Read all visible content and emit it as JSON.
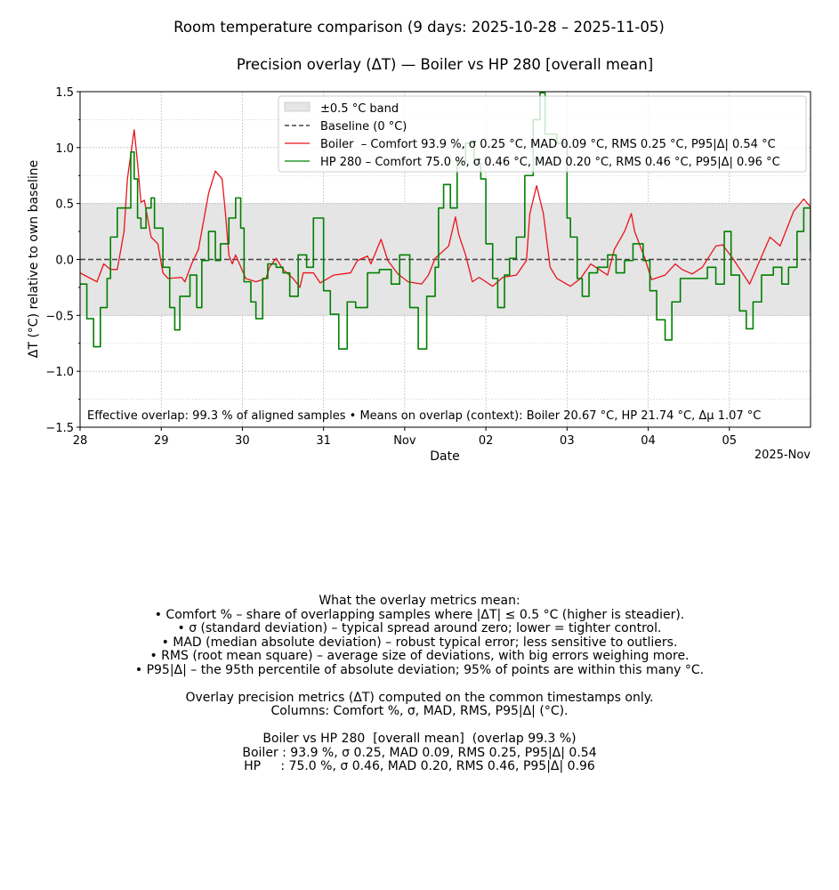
{
  "chart_data": {
    "type": "line",
    "suptitle": "Room temperature comparison (9 days: 2025-10-28 – 2025-11-05)",
    "title": "Precision overlay (ΔT) — Boiler vs HP 280  [overall mean]",
    "xlabel": "Date",
    "ylabel": "ΔT (°C) relative to own baseline",
    "x_offset_label": "2025-Nov",
    "xlim": [
      "2025-10-28 00:00",
      "2025-11-06 00:00"
    ],
    "ylim": [
      -1.5,
      1.5
    ],
    "grid": true,
    "legend_placement": "top-center",
    "yticks": [
      -1.5,
      -1.0,
      -0.5,
      0.0,
      0.5,
      1.0,
      1.5
    ],
    "ytick_labels": [
      "−1.5",
      "−1.0",
      "−0.5",
      "0.0",
      "0.5",
      "1.0",
      "1.5"
    ],
    "xticks": [
      "2025-10-28",
      "2025-10-29",
      "2025-10-30",
      "2025-10-31",
      "2025-11-01",
      "2025-11-02",
      "2025-11-03",
      "2025-11-04",
      "2025-11-05"
    ],
    "xtick_labels": [
      "28",
      "29",
      "30",
      "31",
      "Nov",
      "02",
      "03",
      "04",
      "05"
    ],
    "band": {
      "low": -0.5,
      "high": 0.5,
      "label": "±0.5 °C band",
      "color": "#e5e5e5"
    },
    "baseline": {
      "value": 0,
      "label": "Baseline (0 °C)",
      "color": "#444444"
    },
    "annotation": "Effective overlap: 99.3 % of aligned samples • Means on overlap (context): Boiler 20.67 °C, HP 21.74 °C, Δμ 1.07 °C",
    "series": [
      {
        "name": "Boiler  – Comfort 93.9 %, σ 0.25 °C, MAD 0.09 °C, RMS 0.25 °C, P95|Δ| 0.54 °C",
        "color": "#e8141c",
        "style": "line",
        "x": [
          "2025-10-28 00:00",
          "2025-10-28 05:00",
          "2025-10-28 07:00",
          "2025-10-28 09:00",
          "2025-10-28 11:00",
          "2025-10-28 13:00",
          "2025-10-28 14:00",
          "2025-10-28 16:00",
          "2025-10-28 17:00",
          "2025-10-28 18:00",
          "2025-10-28 19:00",
          "2025-10-28 21:00",
          "2025-10-28 23:00",
          "2025-10-29 00:30",
          "2025-10-29 02:00",
          "2025-10-29 06:00",
          "2025-10-29 07:00",
          "2025-10-29 09:00",
          "2025-10-29 11:00",
          "2025-10-29 14:00",
          "2025-10-29 16:00",
          "2025-10-29 18:00",
          "2025-10-29 19:00",
          "2025-10-29 20:00",
          "2025-10-29 21:00",
          "2025-10-29 22:00",
          "2025-10-30 01:00",
          "2025-10-30 04:00",
          "2025-10-30 07:00",
          "2025-10-30 08:00",
          "2025-10-30 10:00",
          "2025-10-30 12:00",
          "2025-10-30 15:00",
          "2025-10-30 17:00",
          "2025-10-30 18:00",
          "2025-10-30 21:00",
          "2025-10-30 23:00",
          "2025-10-31 03:00",
          "2025-10-31 08:00",
          "2025-10-31 10:00",
          "2025-10-31 13:00",
          "2025-10-31 14:00",
          "2025-10-31 17:00",
          "2025-10-31 19:00",
          "2025-10-31 22:00",
          "2025-11-01 01:00",
          "2025-11-01 05:00",
          "2025-11-01 07:00",
          "2025-11-01 09:00",
          "2025-11-01 13:00",
          "2025-11-01 15:00",
          "2025-11-01 16:00",
          "2025-11-01 18:00",
          "2025-11-01 20:00",
          "2025-11-01 22:00",
          "2025-11-02 02:00",
          "2025-11-02 05:00",
          "2025-11-02 09:00",
          "2025-11-02 12:00",
          "2025-11-02 13:00",
          "2025-11-02 15:00",
          "2025-11-02 17:00",
          "2025-11-02 19:00",
          "2025-11-02 21:00",
          "2025-11-03 01:00",
          "2025-11-03 04:00",
          "2025-11-03 07:00",
          "2025-11-03 12:00",
          "2025-11-03 14:00",
          "2025-11-03 17:00",
          "2025-11-03 19:00",
          "2025-11-03 20:00",
          "2025-11-03 23:00",
          "2025-11-04 01:00",
          "2025-11-04 05:00",
          "2025-11-04 08:00",
          "2025-11-04 10:00",
          "2025-11-04 13:00",
          "2025-11-04 16:00",
          "2025-11-04 20:00",
          "2025-11-04 22:00",
          "2025-11-05 01:00",
          "2025-11-05 06:00",
          "2025-11-05 09:00",
          "2025-11-05 12:00",
          "2025-11-05 15:00",
          "2025-11-05 19:00",
          "2025-11-05 22:00",
          "2025-11-06 00:00"
        ],
        "values": [
          -0.12,
          -0.2,
          -0.04,
          -0.09,
          -0.09,
          0.25,
          0.72,
          1.16,
          0.86,
          0.51,
          0.53,
          0.2,
          0.14,
          -0.12,
          -0.17,
          -0.16,
          -0.2,
          -0.04,
          0.09,
          0.59,
          0.79,
          0.72,
          0.41,
          0.04,
          -0.04,
          0.04,
          -0.17,
          -0.2,
          -0.17,
          -0.07,
          0.01,
          -0.09,
          -0.17,
          -0.25,
          -0.12,
          -0.12,
          -0.21,
          -0.14,
          -0.12,
          -0.01,
          0.03,
          -0.04,
          0.18,
          -0.01,
          -0.13,
          -0.2,
          -0.22,
          -0.14,
          0.01,
          0.12,
          0.38,
          0.22,
          0.04,
          -0.2,
          -0.16,
          -0.24,
          -0.16,
          -0.14,
          -0.01,
          0.41,
          0.66,
          0.41,
          -0.07,
          -0.17,
          -0.24,
          -0.17,
          -0.04,
          -0.14,
          0.09,
          0.25,
          0.41,
          0.25,
          0.01,
          -0.18,
          -0.14,
          -0.04,
          -0.09,
          -0.13,
          -0.07,
          0.12,
          0.13,
          0.01,
          -0.22,
          -0.01,
          0.2,
          0.12,
          0.43,
          0.54,
          0.47
        ]
      },
      {
        "name": "HP 280 – Comfort 75.0 %, σ 0.46 °C, MAD 0.20 °C, RMS 0.46 °C, P95|Δ| 0.96 °C",
        "color": "#008000",
        "style": "step",
        "x": [
          "2025-10-28 00:00",
          "2025-10-28 02:00",
          "2025-10-28 04:00",
          "2025-10-28 06:00",
          "2025-10-28 08:00",
          "2025-10-28 09:00",
          "2025-10-28 11:00",
          "2025-10-28 13:30",
          "2025-10-28 15:00",
          "2025-10-28 16:00",
          "2025-10-28 17:00",
          "2025-10-28 18:00",
          "2025-10-28 19:30",
          "2025-10-28 21:00",
          "2025-10-28 22:00",
          "2025-10-29 00:30",
          "2025-10-29 02:30",
          "2025-10-29 04:00",
          "2025-10-29 05:30",
          "2025-10-29 08:30",
          "2025-10-29 10:30",
          "2025-10-29 12:00",
          "2025-10-29 14:00",
          "2025-10-29 16:00",
          "2025-10-29 17:30",
          "2025-10-29 20:00",
          "2025-10-29 22:00",
          "2025-10-29 23:30",
          "2025-10-30 00:30",
          "2025-10-30 02:30",
          "2025-10-30 04:00",
          "2025-10-30 06:00",
          "2025-10-30 07:30",
          "2025-10-30 10:00",
          "2025-10-30 12:00",
          "2025-10-30 14:00",
          "2025-10-30 16:30",
          "2025-10-30 19:00",
          "2025-10-30 21:00",
          "2025-10-31 00:00",
          "2025-10-31 02:00",
          "2025-10-31 04:30",
          "2025-10-31 07:00",
          "2025-10-31 09:30",
          "2025-10-31 13:00",
          "2025-10-31 16:30",
          "2025-10-31 20:00",
          "2025-10-31 22:30",
          "2025-11-01 01:30",
          "2025-11-01 04:00",
          "2025-11-01 06:30",
          "2025-11-01 09:00",
          "2025-11-01 10:00",
          "2025-11-01 11:30",
          "2025-11-01 13:30",
          "2025-11-01 15:30",
          "2025-11-01 18:00",
          "2025-11-01 20:30",
          "2025-11-01 22:30",
          "2025-11-02 00:00",
          "2025-11-02 02:00",
          "2025-11-02 03:30",
          "2025-11-02 05:30",
          "2025-11-02 07:00",
          "2025-11-02 09:00",
          "2025-11-02 11:30",
          "2025-11-02 14:00",
          "2025-11-02 16:00",
          "2025-11-02 17:30",
          "2025-11-02 21:00",
          "2025-11-03 00:00",
          "2025-11-03 01:00",
          "2025-11-03 03:00",
          "2025-11-03 04:30",
          "2025-11-03 06:30",
          "2025-11-03 09:00",
          "2025-11-03 12:00",
          "2025-11-03 14:30",
          "2025-11-03 17:00",
          "2025-11-03 19:30",
          "2025-11-03 22:30",
          "2025-11-04 00:30",
          "2025-11-04 02:30",
          "2025-11-04 05:00",
          "2025-11-04 07:00",
          "2025-11-04 09:30",
          "2025-11-04 12:30",
          "2025-11-04 15:00",
          "2025-11-04 17:30",
          "2025-11-04 20:00",
          "2025-11-04 22:30",
          "2025-11-05 00:30",
          "2025-11-05 03:00",
          "2025-11-05 05:00",
          "2025-11-05 07:00",
          "2025-11-05 09:30",
          "2025-11-05 13:00",
          "2025-11-05 15:30",
          "2025-11-05 17:30",
          "2025-11-05 20:00",
          "2025-11-05 22:00",
          "2025-11-06 00:00"
        ],
        "values": [
          -0.22,
          -0.53,
          -0.78,
          -0.43,
          -0.17,
          0.2,
          0.46,
          0.46,
          0.96,
          0.72,
          0.37,
          0.28,
          0.46,
          0.55,
          0.28,
          -0.07,
          -0.43,
          -0.63,
          -0.33,
          -0.14,
          -0.43,
          -0.01,
          0.25,
          -0.01,
          0.14,
          0.37,
          0.55,
          0.28,
          -0.2,
          -0.38,
          -0.53,
          -0.17,
          -0.04,
          -0.07,
          -0.12,
          -0.33,
          0.04,
          -0.07,
          0.37,
          -0.28,
          -0.49,
          -0.8,
          -0.38,
          -0.43,
          -0.12,
          -0.09,
          -0.22,
          0.04,
          -0.43,
          -0.8,
          -0.33,
          -0.07,
          0.46,
          0.67,
          0.46,
          0.88,
          1.04,
          0.86,
          0.72,
          0.14,
          -0.17,
          -0.43,
          -0.14,
          0.01,
          0.2,
          0.75,
          1.25,
          1.49,
          1.12,
          1.04,
          0.37,
          0.2,
          -0.17,
          -0.33,
          -0.12,
          -0.07,
          0.04,
          -0.12,
          -0.01,
          0.14,
          -0.01,
          -0.28,
          -0.54,
          -0.72,
          -0.38,
          -0.17,
          -0.17,
          -0.17,
          -0.07,
          -0.22,
          0.25,
          -0.14,
          -0.46,
          -0.62,
          -0.38,
          -0.14,
          -0.07,
          -0.22,
          -0.07,
          0.25,
          0.46,
          0.07
        ]
      }
    ]
  },
  "notes": {
    "lines": [
      "What the overlay metrics mean:",
      "• Comfort % – share of overlapping samples where |ΔT| ≤ 0.5 °C (higher is steadier).",
      "• σ (standard deviation) – typical spread around zero; lower = tighter control.",
      "• MAD (median absolute deviation) – robust typical error; less sensitive to outliers.",
      "• RMS (root mean square) – average size of deviations, with big errors weighing more.",
      "• P95|Δ| – the 95th percentile of absolute deviation; 95% of points are within this many °C.",
      "",
      "Overlay precision metrics (ΔT) computed on the common timestamps only.",
      "Columns: Comfort %, σ, MAD, RMS, P95|Δ| (°C).",
      "",
      "Boiler vs HP 280  [overall mean]  (overlap 99.3 %)",
      "Boiler : 93.9 %, σ 0.25, MAD 0.09, RMS 0.25, P95|Δ| 0.54",
      "HP     : 75.0 %, σ 0.46, MAD 0.20, RMS 0.46, P95|Δ| 0.96"
    ]
  }
}
